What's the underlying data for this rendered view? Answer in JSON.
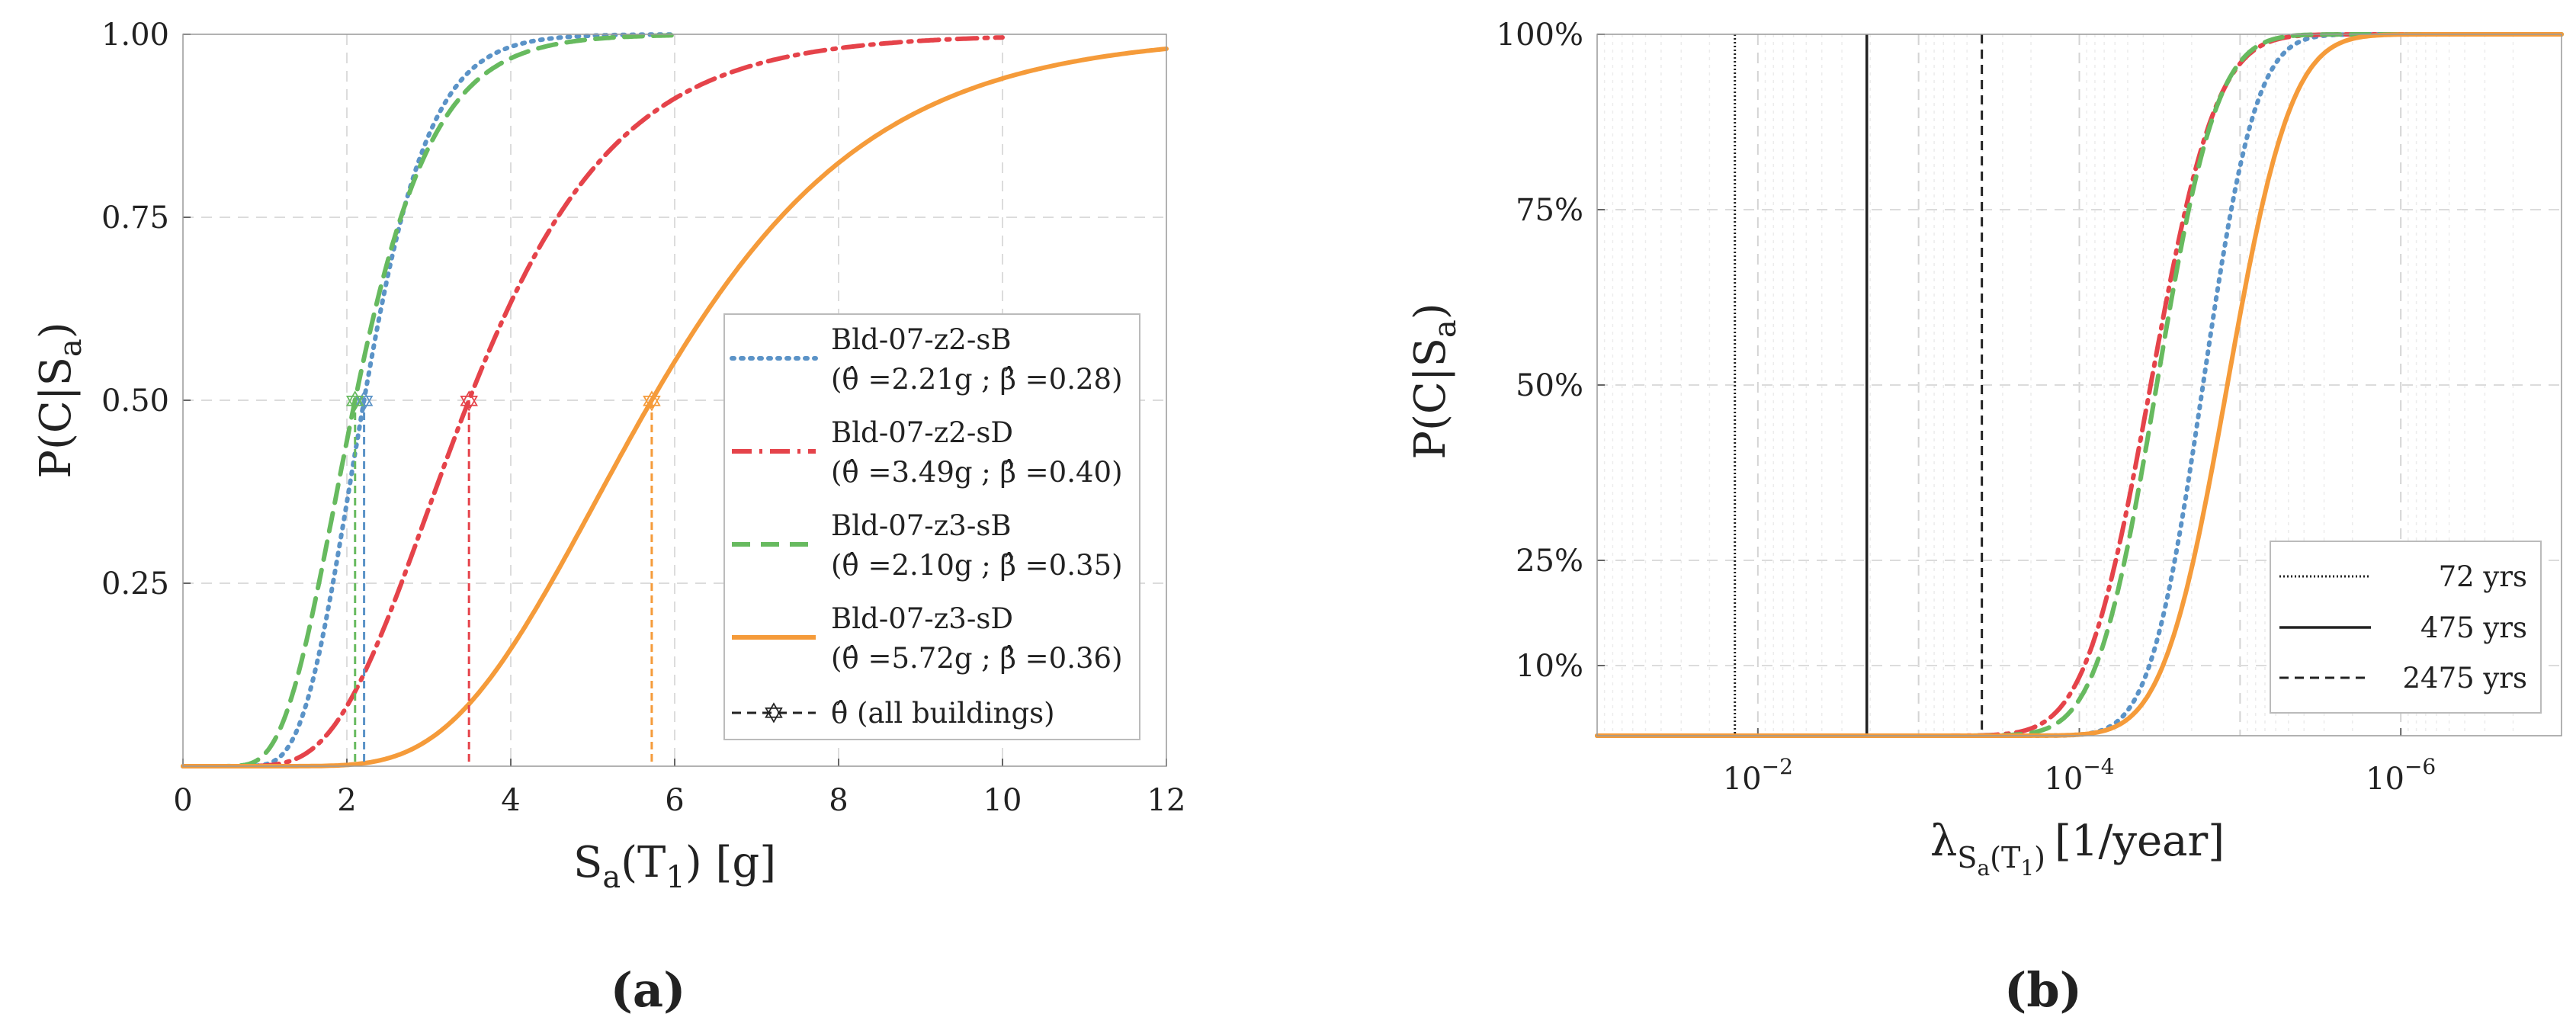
{
  "chart_data": [
    {
      "type": "line",
      "panel_label": "(a)",
      "xlabel_main": "S",
      "xlabel_sub": "a",
      "xlabel_rest_open": "(T",
      "xlabel_rest_sub": "1",
      "xlabel_rest_close": ") [g]",
      "ylabel_main": "P(C|S",
      "ylabel_sub": "a",
      "ylabel_close": ")",
      "xlim": [
        0,
        12
      ],
      "ylim": [
        0,
        1
      ],
      "x_ticks": [
        0,
        2,
        4,
        6,
        8,
        10,
        12
      ],
      "x_tick_labels": [
        "0",
        "2",
        "4",
        "6",
        "8",
        "10",
        "12"
      ],
      "y_ticks": [
        0.25,
        0.5,
        0.75,
        1.0
      ],
      "y_tick_labels": [
        "0.25",
        "0.50",
        "0.75",
        "1.00"
      ],
      "grid": true,
      "legend_placement": "center-right",
      "series": [
        {
          "name": "Bld-07-z2-sB",
          "params": "(θ̂ =2.21g ; β̂ =0.28)",
          "theta": 2.21,
          "beta": 0.28,
          "x_max": 6,
          "color": "#5b93c7",
          "style": "dotted"
        },
        {
          "name": "Bld-07-z2-sD",
          "params": "(θ̂ =3.49g ; β̂ =0.40)",
          "theta": 3.49,
          "beta": 0.4,
          "x_max": 10,
          "color": "#e5434a",
          "style": "dashdot"
        },
        {
          "name": "Bld-07-z3-sB",
          "params": "(θ̂ =2.10g ; β̂ =0.35)",
          "theta": 2.1,
          "beta": 0.35,
          "x_max": 6,
          "color": "#67ba5f",
          "style": "dashed"
        },
        {
          "name": "Bld-07-z3-sD",
          "params": "(θ̂ =5.72g ; β̂ =0.36)",
          "theta": 5.72,
          "beta": 0.36,
          "x_max": 12,
          "color": "#f59b3a",
          "style": "solid"
        }
      ],
      "median_marker_label": "θ̂ (all buildings)"
    },
    {
      "type": "line",
      "panel_label": "(b)",
      "xlabel_main": "λ",
      "xlabel_sub": "S",
      "xlabel_subsub": "a",
      "xlabel_sub_open": "(T",
      "xlabel_sub_sub": "1",
      "xlabel_sub_close": ")",
      "xlabel_rest": "[1/year]",
      "ylabel_main": "P(C|S",
      "ylabel_sub": "a",
      "ylabel_close": ")",
      "x_scale": "log",
      "x_direction": "reversed",
      "xlim": [
        0.1,
        1e-07
      ],
      "ylim": [
        0,
        1
      ],
      "x_ticks": [
        0.01,
        0.0001,
        1e-06
      ],
      "x_tick_base": [
        "10",
        "10",
        "10"
      ],
      "x_tick_exp": [
        "−2",
        "−4",
        "−6"
      ],
      "y_ticks": [
        0.1,
        0.25,
        0.5,
        0.75,
        1.0
      ],
      "y_tick_labels": [
        "10%",
        "25%",
        "50%",
        "75%",
        "100%"
      ],
      "grid": true,
      "legend_placement": "bottom-right",
      "return_periods": [
        {
          "label": "72 yrs",
          "rate": 0.0139,
          "style": "dotted"
        },
        {
          "label": "475 yrs",
          "rate": 0.0021,
          "style": "solid"
        },
        {
          "label": "2475 yrs",
          "rate": 0.000404,
          "style": "dashed"
        }
      ],
      "series": [
        {
          "name": "Bld-07-z2-sB",
          "median_rate": 1.7e-05,
          "beta": 0.6,
          "color": "#5b93c7",
          "style": "dotted"
        },
        {
          "name": "Bld-07-z2-sD",
          "median_rate": 3.6e-05,
          "beta": 0.74,
          "color": "#e5434a",
          "style": "dashdot"
        },
        {
          "name": "Bld-07-z3-sB",
          "median_rate": 3.3e-05,
          "beta": 0.68,
          "color": "#67ba5f",
          "style": "dashed"
        },
        {
          "name": "Bld-07-z3-sD",
          "median_rate": 1.2e-05,
          "beta": 0.72,
          "color": "#f59b3a",
          "style": "solid"
        }
      ]
    }
  ]
}
